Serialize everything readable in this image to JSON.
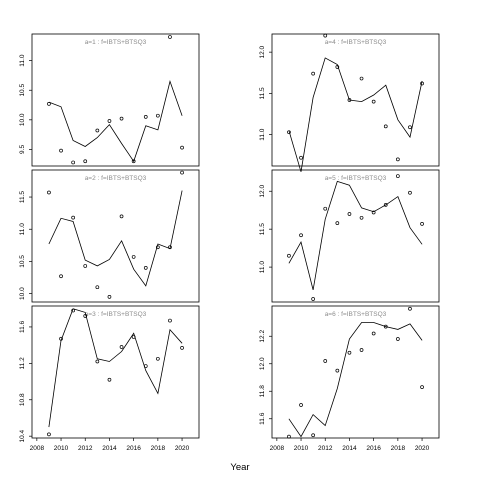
{
  "xlabel": "Year",
  "x_ticks": [
    2008,
    2010,
    2012,
    2014,
    2016,
    2018,
    2020
  ],
  "chart_data": [
    {
      "type": "line",
      "title": "a=1 : f=IBTS+BTSQ3",
      "years": [
        2009,
        2010,
        2011,
        2012,
        2013,
        2014,
        2015,
        2016,
        2017,
        2018,
        2019,
        2020
      ],
      "fitted": [
        10.3,
        10.22,
        9.65,
        9.55,
        9.7,
        9.92,
        9.6,
        9.3,
        9.9,
        9.83,
        10.65,
        10.07
      ],
      "observed": [
        10.27,
        9.48,
        9.28,
        9.3,
        9.82,
        9.98,
        10.02,
        9.3,
        10.05,
        10.07,
        11.4,
        9.53
      ],
      "yticks": [
        9.5,
        10.0,
        10.5,
        11.0
      ],
      "ylim": [
        9.22,
        11.45
      ]
    },
    {
      "type": "line",
      "title": "a=4 : f=IBTS+BTSQ3",
      "years": [
        2009,
        2010,
        2011,
        2012,
        2013,
        2014,
        2015,
        2016,
        2017,
        2018,
        2019,
        2020
      ],
      "fitted": [
        11.05,
        10.55,
        11.45,
        11.93,
        11.85,
        11.42,
        11.4,
        11.48,
        11.6,
        11.18,
        10.97,
        11.65
      ],
      "observed": [
        11.03,
        10.72,
        11.74,
        12.2,
        11.82,
        11.42,
        11.68,
        11.4,
        11.1,
        10.7,
        11.09,
        11.62
      ],
      "yticks": [
        11.0,
        11.5,
        12.0
      ],
      "ylim": [
        10.62,
        12.22
      ]
    },
    {
      "type": "line",
      "title": "a=2 : f=IBTS+BTSQ3",
      "years": [
        2009,
        2010,
        2011,
        2012,
        2013,
        2014,
        2015,
        2016,
        2017,
        2018,
        2019,
        2020
      ],
      "fitted": [
        10.77,
        11.17,
        11.12,
        10.52,
        10.43,
        10.53,
        10.82,
        10.38,
        10.12,
        10.77,
        10.7,
        11.6
      ],
      "observed": [
        11.57,
        10.27,
        11.18,
        10.43,
        10.1,
        9.95,
        11.2,
        10.57,
        10.4,
        10.72,
        10.72,
        11.88
      ],
      "yticks": [
        10.0,
        10.5,
        11.0,
        11.5
      ],
      "ylim": [
        9.87,
        11.92
      ]
    },
    {
      "type": "line",
      "title": "a=5 : f=IBTS+BTSQ3",
      "years": [
        2009,
        2010,
        2011,
        2012,
        2013,
        2014,
        2015,
        2016,
        2017,
        2018,
        2019,
        2020
      ],
      "fitted": [
        11.05,
        11.33,
        10.7,
        11.63,
        12.13,
        12.08,
        11.78,
        11.73,
        11.82,
        11.93,
        11.52,
        11.3
      ],
      "observed": [
        11.15,
        11.42,
        10.58,
        11.77,
        11.58,
        11.7,
        11.65,
        11.72,
        11.82,
        12.2,
        11.98,
        11.57
      ],
      "yticks": [
        11.0,
        11.5,
        12.0
      ],
      "ylim": [
        10.54,
        12.28
      ]
    },
    {
      "type": "line",
      "title": "a=3 : f=IBTS+BTSQ3",
      "years": [
        2009,
        2010,
        2011,
        2012,
        2013,
        2014,
        2015,
        2016,
        2017,
        2018,
        2019,
        2020
      ],
      "fitted": [
        10.5,
        11.45,
        11.8,
        11.76,
        11.25,
        11.22,
        11.33,
        11.53,
        11.12,
        10.87,
        11.57,
        11.42
      ],
      "observed": [
        10.42,
        11.47,
        11.78,
        11.72,
        11.22,
        11.02,
        11.38,
        11.49,
        11.17,
        11.25,
        11.67,
        11.37
      ],
      "yticks": [
        10.4,
        10.8,
        11.2,
        11.6
      ],
      "ylim": [
        10.38,
        11.83
      ]
    },
    {
      "type": "line",
      "title": "a=6 : f=IBTS+BTSQ3",
      "years": [
        2009,
        2010,
        2011,
        2012,
        2013,
        2014,
        2015,
        2016,
        2017,
        2018,
        2019,
        2020
      ],
      "fitted": [
        11.6,
        11.47,
        11.63,
        11.55,
        11.82,
        12.18,
        12.3,
        12.3,
        12.27,
        12.25,
        12.29,
        12.17
      ],
      "observed": [
        11.47,
        11.7,
        11.48,
        12.02,
        11.95,
        12.08,
        12.1,
        12.22,
        12.27,
        12.18,
        12.4,
        11.83
      ],
      "yticks": [
        11.6,
        11.8,
        12.0,
        12.2
      ],
      "ylim": [
        11.46,
        12.42
      ]
    }
  ]
}
